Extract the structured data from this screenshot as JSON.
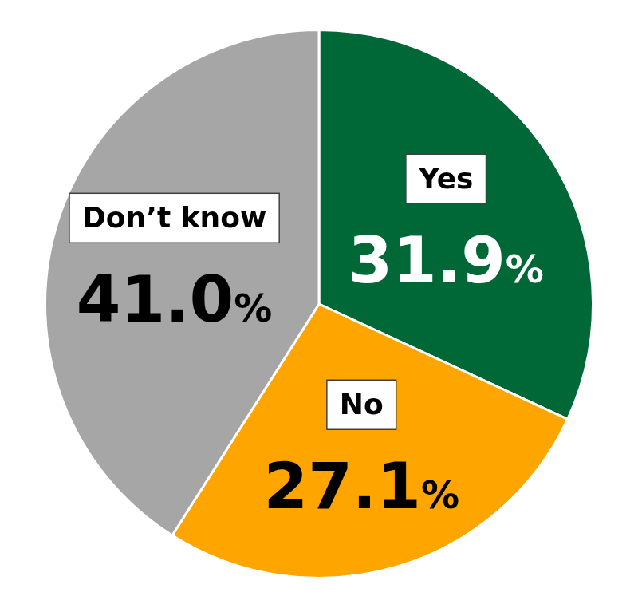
{
  "chart_data": {
    "type": "pie",
    "categories": [
      "Yes",
      "No",
      "Don’t know"
    ],
    "values": [
      31.9,
      27.1,
      41.0
    ],
    "value_labels": [
      "31.9%",
      "27.1%",
      "41.0%"
    ],
    "colors": [
      "#006837",
      "#FFA500",
      "#A6A6A6"
    ],
    "data_labels": true
  }
}
